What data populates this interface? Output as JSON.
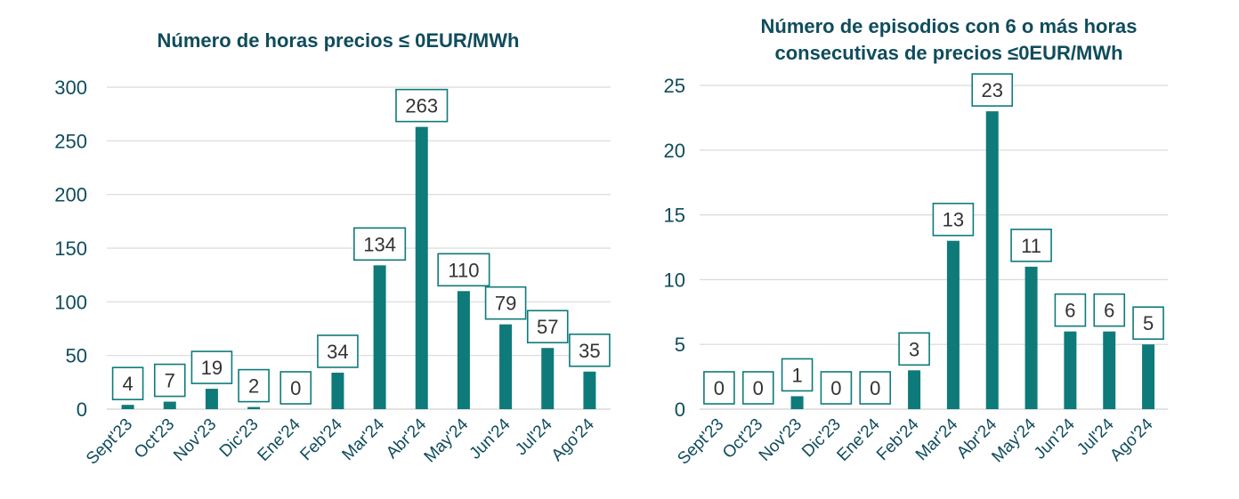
{
  "colors": {
    "bar": "#0f7a7a",
    "text": "#0f4c5c",
    "label_border": "#0f7a7a",
    "grid": "#d9d9d9"
  },
  "chart_data": [
    {
      "type": "bar",
      "title": [
        "Número de horas precios ≤ 0EUR/MWh"
      ],
      "categories": [
        "Sept'23",
        "Oct'23",
        "Nov'23",
        "Dic'23",
        "Ene'24",
        "Feb'24",
        "Mar'24",
        "Abr'24",
        "May'24",
        "Jun'24",
        "Jul'24",
        "Ago'24"
      ],
      "values": [
        4,
        7,
        19,
        2,
        0,
        34,
        134,
        263,
        110,
        79,
        57,
        35
      ],
      "ylim": [
        0,
        300
      ],
      "yticks": [
        0,
        50,
        100,
        150,
        200,
        250,
        300
      ],
      "grid": true,
      "data_labels": true
    },
    {
      "type": "bar",
      "title": [
        "Número de episodios con 6 o más horas",
        "consecutivas de precios ≤0EUR/MWh"
      ],
      "categories": [
        "Sept'23",
        "Oct'23",
        "Nov'23",
        "Dic'23",
        "Ene'24",
        "Feb'24",
        "Mar'24",
        "Abr'24",
        "May'24",
        "Jun'24",
        "Jul'24",
        "Ago'24"
      ],
      "values": [
        0,
        0,
        1,
        0,
        0,
        3,
        13,
        23,
        11,
        6,
        6,
        5
      ],
      "ylim": [
        0,
        25
      ],
      "yticks": [
        0,
        5,
        10,
        15,
        20,
        25
      ],
      "grid": true,
      "data_labels": true
    }
  ]
}
